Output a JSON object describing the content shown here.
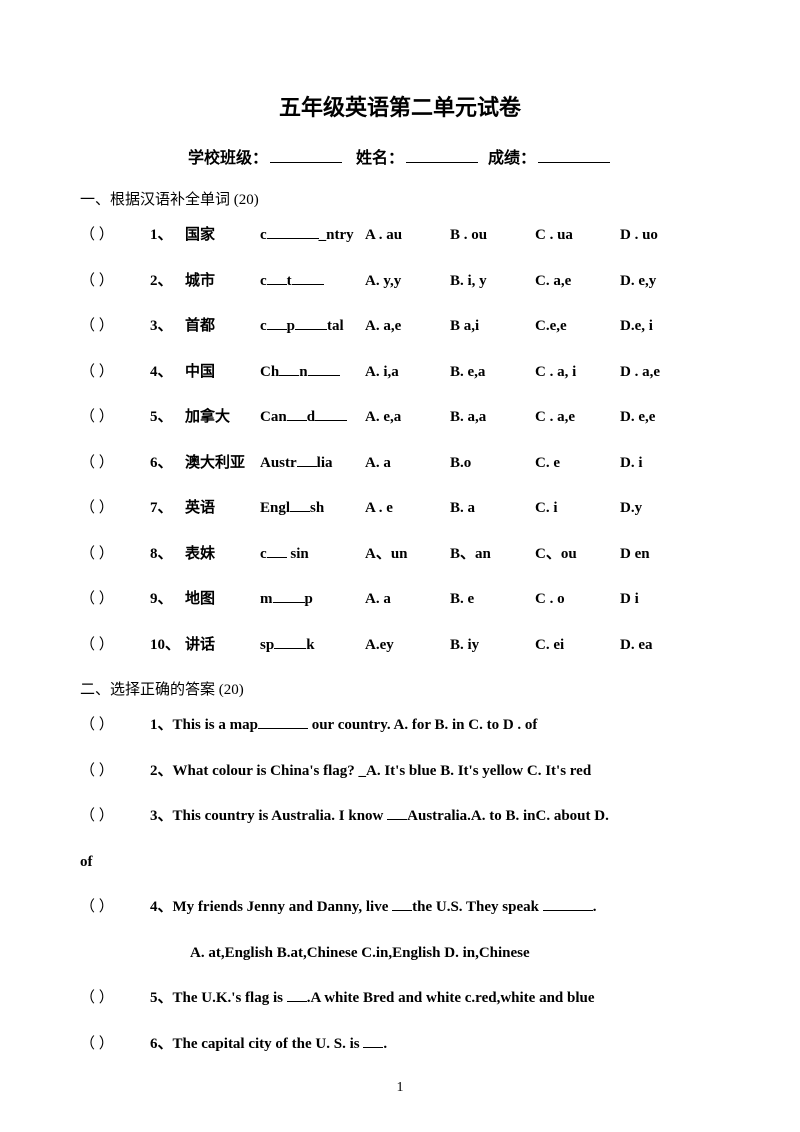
{
  "title": "五年级英语第二单元试卷",
  "header": {
    "school_label": "学校班级：",
    "name_label": "姓名：",
    "score_label": "成绩："
  },
  "section1": {
    "heading": "一、根据汉语补全单词   (20)",
    "rows": [
      {
        "num": "1、",
        "cn": "国家",
        "word_parts": [
          "c",
          "",
          "_ntry"
        ],
        "A": "A . au",
        "B": "B . ou",
        "C": "C . ua",
        "D": "D . uo"
      },
      {
        "num": "2、",
        "cn": "城市",
        "word_parts": [
          "c",
          "t",
          ""
        ],
        "A": "A. y,y",
        "B": "B. i, y",
        "C": "C. a,e",
        "D": "D. e,y"
      },
      {
        "num": "3、",
        "cn": "首都",
        "word_parts": [
          "c",
          "p",
          "tal"
        ],
        "A": "A. a,e",
        "B": "B a,i",
        "C": "C.e,e",
        "D": "D.e, i"
      },
      {
        "num": "4、",
        "cn": "中国",
        "word_parts": [
          "Ch",
          "n",
          ""
        ],
        "A": "A. i,a",
        "B": "B. e,a",
        "C": "C . a, i",
        "D": "D .   a,e"
      },
      {
        "num": "5、",
        "cn": "加拿大",
        "word_parts": [
          "Can",
          "d",
          ""
        ],
        "A": "A. e,a",
        "B": "B. a,a",
        "C": "C . a,e",
        "D": "D. e,e"
      },
      {
        "num": "6、",
        "cn": "澳大利亚",
        "word_parts": [
          "Austr",
          "lia"
        ],
        "A": "A. a",
        "B": "B.o",
        "C": "C. e",
        "D": "D. i",
        "single": true
      },
      {
        "num": "7、",
        "cn": "英语",
        "word_parts": [
          "Engl",
          "sh"
        ],
        "A": "A . e",
        "B": "B. a",
        "C": "C. i",
        "D": "D.y",
        "single": true
      },
      {
        "num": "8、",
        "cn": "表妹",
        "word_parts": [
          "c",
          " sin"
        ],
        "A": "A、un",
        "B": "B、an",
        "C": "C、ou",
        "D": "D  en",
        "single": true
      },
      {
        "num": "9、",
        "cn": "地图",
        "word_parts": [
          "m",
          "p"
        ],
        "A": "A. a",
        "B": "B. e",
        "C": "C . o",
        "D": "D i",
        "single": true,
        "mid": true
      },
      {
        "num": "10、",
        "cn": "讲话",
        "word_parts": [
          "sp",
          "k"
        ],
        "A": "A.ey",
        "B": "B. iy",
        "C": "C. ei",
        "D": "D. ea",
        "single": true,
        "mid": true
      }
    ]
  },
  "section2": {
    "heading": "二、选择正确的答案  (20)",
    "q1": {
      "num": "1、",
      "text_a": "This is a map",
      "text_b": " our country.    A. for   B. in   C. to    D . of"
    },
    "q2": {
      "num": "2、",
      "text": "What colour is China's flag?  _A. It's blue B. It's yellow C. It's red"
    },
    "q3": {
      "num": "3、",
      "text_a": "This country is Australia. I know ",
      "text_b": "Australia.A. to B. inC. about D."
    },
    "q3_cont": "of",
    "q4": {
      "num": "4、",
      "text_a": "My friends Jenny and Danny, live ",
      "text_b": "the U.S.   They speak ",
      "text_c": ".",
      "line2": "A. at,English      B.at,Chinese      C.in,English      D. in,Chinese"
    },
    "q5": {
      "num": "5、",
      "text_a": "The U.K.'s flag   is ",
      "text_b": ".A white Bred and white c.red,white and blue"
    },
    "q6": {
      "num": "6、",
      "text_a": "The capital city of the U. S. is ",
      "text_b": "."
    }
  },
  "page_number": "1",
  "paren_text": "（      ）"
}
